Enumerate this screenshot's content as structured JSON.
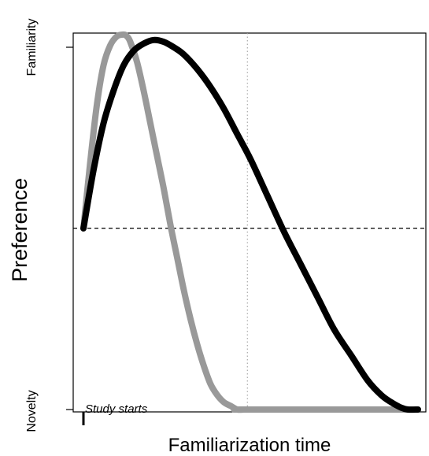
{
  "chart_data": {
    "type": "line",
    "xlabel": "Familiarization time",
    "ylabel": "Preference",
    "y_tick_labels": {
      "top": "Familiarity",
      "bottom": "Novelty"
    },
    "annotation": "Study starts",
    "xlim": [
      0,
      1
    ],
    "ylim": [
      0,
      1
    ],
    "grid": false,
    "reference_lines": {
      "horizontal_y": 0.5,
      "vertical_x": 0.49
    },
    "series": [
      {
        "color": "#999999",
        "x": [
          0.0,
          0.02,
          0.04,
          0.06,
          0.08,
          0.1,
          0.12,
          0.13,
          0.14,
          0.16,
          0.18,
          0.2,
          0.22,
          0.24,
          0.26,
          0.28,
          0.3,
          0.32,
          0.34,
          0.36,
          0.38,
          0.4,
          0.42,
          0.44,
          0.46,
          0.48,
          0.49,
          1.0
        ],
        "y": [
          0.5,
          0.68,
          0.84,
          0.95,
          1.005,
          1.03,
          1.035,
          1.03,
          1.015,
          0.96,
          0.88,
          0.79,
          0.7,
          0.61,
          0.51,
          0.42,
          0.33,
          0.25,
          0.18,
          0.12,
          0.07,
          0.04,
          0.02,
          0.01,
          0.0,
          0.0,
          0.0,
          0.0
        ]
      },
      {
        "color": "#000000",
        "x": [
          0.0,
          0.03,
          0.06,
          0.09,
          0.12,
          0.15,
          0.18,
          0.21,
          0.24,
          0.27,
          0.3,
          0.34,
          0.38,
          0.42,
          0.46,
          0.5,
          0.55,
          0.6,
          0.65,
          0.7,
          0.75,
          0.8,
          0.85,
          0.89,
          0.92,
          0.95,
          0.97,
          1.0
        ],
        "y": [
          0.5,
          0.66,
          0.79,
          0.88,
          0.95,
          0.99,
          1.01,
          1.02,
          1.015,
          1.0,
          0.98,
          0.94,
          0.89,
          0.83,
          0.76,
          0.69,
          0.59,
          0.49,
          0.4,
          0.31,
          0.22,
          0.15,
          0.08,
          0.04,
          0.02,
          0.005,
          0.0,
          0.0
        ]
      }
    ]
  }
}
